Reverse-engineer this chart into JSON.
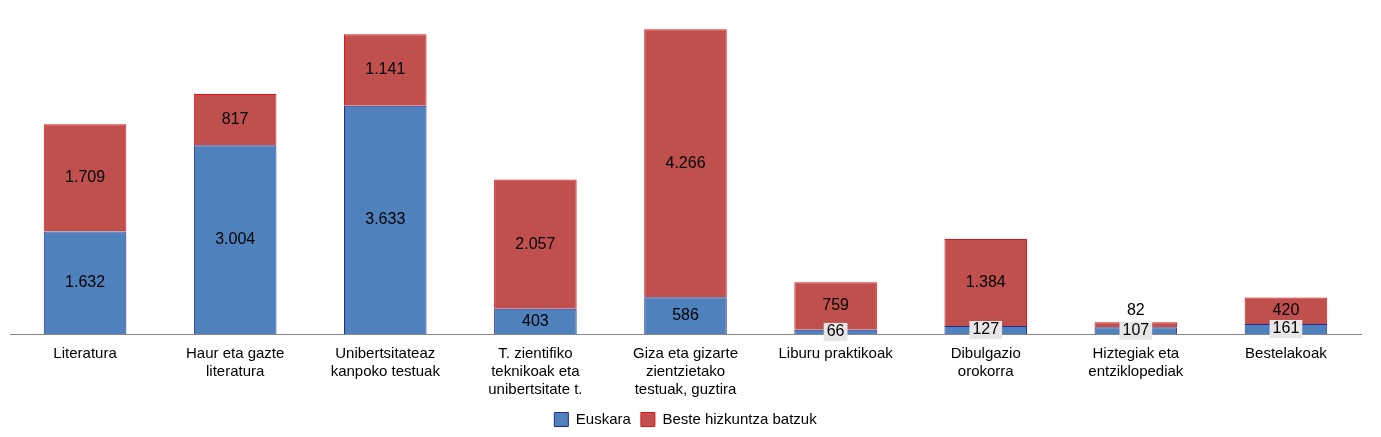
{
  "chart_data": {
    "type": "bar",
    "stacked": true,
    "categories": [
      "Literatura",
      "Haur eta gazte literatura",
      "Unibertsitateaz kanpoko testuak",
      "T. zientifiko teknikoak eta unibertsitate t.",
      "Giza eta gizarte zientzietako testuak, guztira",
      "Liburu praktikoak",
      "Dibulgazio orokorra",
      "Hiztegiak eta entziklopediak",
      "Bestelakoak"
    ],
    "series": [
      {
        "name": "Euskara",
        "color": "#4f81bd",
        "values": [
          1632,
          3004,
          3633,
          403,
          586,
          66,
          127,
          107,
          161
        ],
        "value_labels": [
          "1.632",
          "3.004",
          "3.633",
          "403",
          "586",
          "66",
          "127",
          "107",
          "161"
        ]
      },
      {
        "name": "Beste hizkuntza batzuk",
        "color": "#c0504d",
        "values": [
          1709,
          817,
          1141,
          2057,
          4266,
          759,
          1384,
          82,
          420
        ],
        "value_labels": [
          "1.709",
          "817",
          "1.141",
          "2.057",
          "4.266",
          "759",
          "1.384",
          "82",
          "420"
        ]
      }
    ],
    "tick_labels": "x",
    "grid": false,
    "legend": "bottom"
  }
}
